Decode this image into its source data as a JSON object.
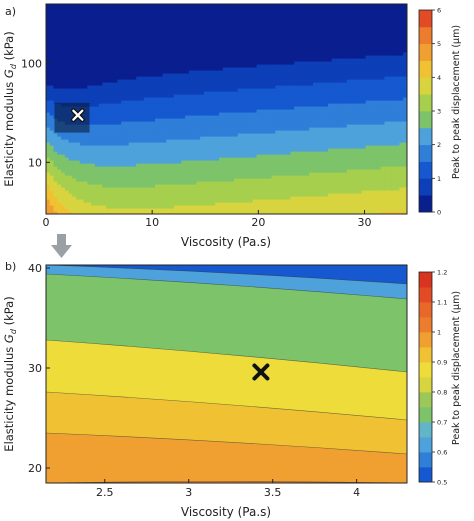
{
  "chart_data": [
    {
      "type": "contour",
      "panel_label": "a)",
      "xlabel": "Viscosity (Pa.s)",
      "ylabel": "Elasticity modulus G_d (kPa)",
      "ylabel_main": "Elasticity modulus ",
      "ylabel_sym": "G",
      "ylabel_sub": "d",
      "ylabel_unit": " (kPa)",
      "xlim": [
        0,
        34
      ],
      "ylim": [
        3,
        400
      ],
      "yscale": "log",
      "x_ticks": [
        0,
        10,
        20,
        30
      ],
      "x_tick_labels": [
        "0",
        "10",
        "20",
        "30"
      ],
      "y_ticks": [
        10,
        100
      ],
      "y_tick_labels": [
        "10",
        "100"
      ],
      "colorbar_label": "Peak to peak displacement (μm)",
      "colorbar_ticks": [
        "0",
        "1",
        "2",
        "3",
        "4",
        "5",
        "6"
      ],
      "levels": [
        0,
        0.5,
        1,
        1.5,
        2,
        2.5,
        3,
        3.5,
        4,
        4.5,
        5,
        5.5,
        6
      ],
      "level_colors": [
        "#0a1f8f",
        "#0d3fb8",
        "#1558d0",
        "#2f7fd9",
        "#4ea2dc",
        "#7cc36a",
        "#a7cf4e",
        "#d8d43f",
        "#f0c233",
        "#f0a030",
        "#ec7d2c",
        "#e24b26"
      ],
      "marker": {
        "x": 3,
        "y": 30,
        "symbol": "x"
      },
      "zoom_box": {
        "x": [
          0.8,
          4.1
        ],
        "y": [
          20,
          40
        ]
      }
    },
    {
      "type": "contour",
      "panel_label": "b)",
      "xlabel": "Viscosity (Pa.s)",
      "ylabel": "Elasticity modulus G_d (kPa)",
      "ylabel_main": "Elasticity modulus ",
      "ylabel_sym": "G",
      "ylabel_sub": "d",
      "ylabel_unit": " (kPa)",
      "xlim": [
        2.15,
        4.3
      ],
      "ylim": [
        18.5,
        40.3
      ],
      "x_ticks": [
        2.5,
        3,
        3.5,
        4
      ],
      "x_tick_labels": [
        "2.5",
        "3",
        "3.5",
        "4"
      ],
      "y_ticks": [
        20,
        30,
        40
      ],
      "y_tick_labels": [
        "20",
        "30",
        "40"
      ],
      "colorbar_label": "Peak to peak displacement (μm)",
      "colorbar_ticks": [
        "0.5",
        "0.6",
        "0.7",
        "0.8",
        "0.9",
        "1",
        "1.1",
        "1.2"
      ],
      "levels": [
        0.5,
        0.55,
        0.6,
        0.65,
        0.7,
        0.75,
        0.8,
        0.85,
        0.9,
        0.95,
        1,
        1.05,
        1.1,
        1.15,
        1.2
      ],
      "level_colors": [
        "#1558d0",
        "#2f7fd9",
        "#4ea2dc",
        "#62b4c8",
        "#7cc36a",
        "#9cc85a",
        "#d8d43f",
        "#eddc3a",
        "#f0c233",
        "#f0a030",
        "#ec7d2c",
        "#e8682a",
        "#e24b26",
        "#d8341f"
      ],
      "bands": [
        {
          "level": 0.55,
          "y_left": 40.3,
          "y_right": 38.4,
          "color": "#4ea2dc"
        },
        {
          "level": 0.75,
          "y_left": 39.4,
          "y_right": 36.9,
          "color": "#7cc36a"
        },
        {
          "level": 0.85,
          "y_left": 32.8,
          "y_right": 29.6,
          "color": "#eddc3a"
        },
        {
          "level": 0.9,
          "y_left": 27.6,
          "y_right": 24.8,
          "color": "#f0c233"
        },
        {
          "level": 0.95,
          "y_left": 23.5,
          "y_right": 21.4,
          "color": "#f0a030"
        },
        {
          "level": 1.0,
          "y_left": 18.5,
          "y_right": 18.5,
          "color": "#ec7d2c"
        }
      ],
      "marker": {
        "x": 3.43,
        "y": 29.6,
        "symbol": "x"
      }
    }
  ]
}
